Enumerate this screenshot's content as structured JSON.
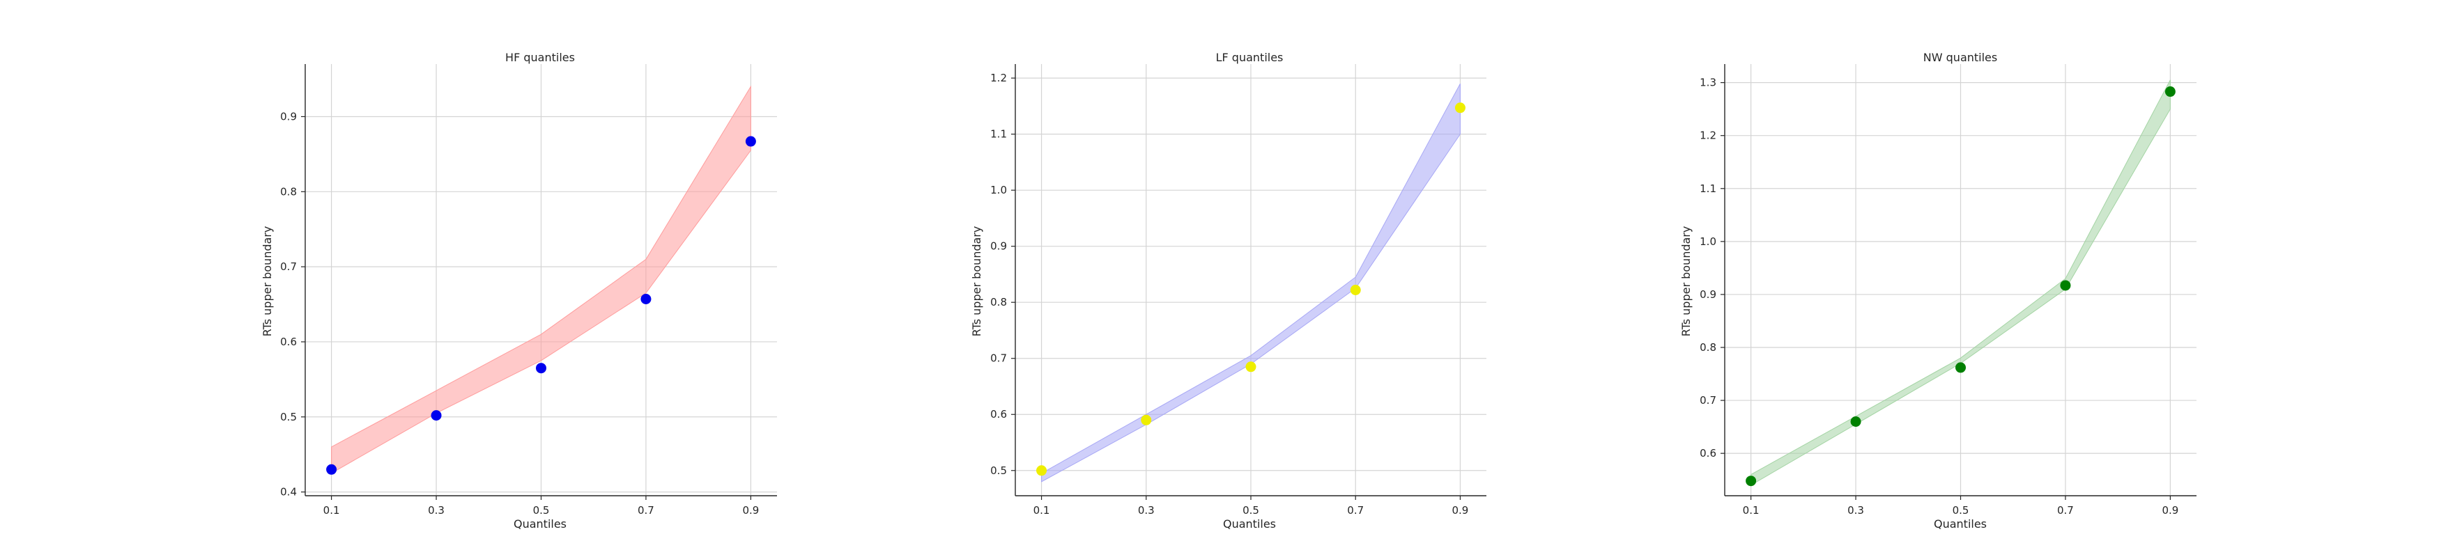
{
  "chart_data": [
    {
      "type": "line",
      "title": "HF quantiles",
      "xlabel": "Quantiles",
      "ylabel": "RTs upper boundary",
      "x": [
        0.1,
        0.3,
        0.5,
        0.7,
        0.9
      ],
      "xticks": [
        "0.1",
        "0.3",
        "0.5",
        "0.7",
        "0.9"
      ],
      "xlim": [
        0.05,
        0.95
      ],
      "ylim": [
        0.395,
        0.97
      ],
      "yticks": [
        0.4,
        0.5,
        0.6,
        0.7,
        0.8,
        0.9
      ],
      "yticklabels": [
        "0.4",
        "0.5",
        "0.6",
        "0.7",
        "0.8",
        "0.9"
      ],
      "grid": true,
      "band": {
        "lower": [
          0.425,
          0.505,
          0.575,
          0.665,
          0.855
        ],
        "upper": [
          0.46,
          0.535,
          0.61,
          0.71,
          0.94
        ],
        "color": "#ff9c9c"
      },
      "points": {
        "values": [
          0.43,
          0.502,
          0.565,
          0.657,
          0.867
        ],
        "color": "#0000ee"
      }
    },
    {
      "type": "line",
      "title": "LF quantiles",
      "xlabel": "Quantiles",
      "ylabel": "RTs upper boundary",
      "x": [
        0.1,
        0.3,
        0.5,
        0.7,
        0.9
      ],
      "xticks": [
        "0.1",
        "0.3",
        "0.5",
        "0.7",
        "0.9"
      ],
      "xlim": [
        0.05,
        0.95
      ],
      "ylim": [
        0.455,
        1.225
      ],
      "yticks": [
        0.5,
        0.6,
        0.7,
        0.8,
        0.9,
        1.0,
        1.1,
        1.2
      ],
      "yticklabels": [
        "0.5",
        "0.6",
        "0.7",
        "0.8",
        "0.9",
        "1.0",
        "1.1",
        "1.2"
      ],
      "grid": true,
      "band": {
        "lower": [
          0.48,
          0.582,
          0.69,
          0.825,
          1.1
        ],
        "upper": [
          0.495,
          0.6,
          0.705,
          0.845,
          1.19
        ],
        "color": "#a8a8f5"
      },
      "points": {
        "values": [
          0.5,
          0.59,
          0.685,
          0.822,
          1.147
        ],
        "color": "#eeee00"
      }
    },
    {
      "type": "line",
      "title": "NW quantiles",
      "xlabel": "Quantiles",
      "ylabel": "RTs upper boundary",
      "x": [
        0.1,
        0.3,
        0.5,
        0.7,
        0.9
      ],
      "xticks": [
        "0.1",
        "0.3",
        "0.5",
        "0.7",
        "0.9"
      ],
      "xlim": [
        0.05,
        0.95
      ],
      "ylim": [
        0.52,
        1.335
      ],
      "yticks": [
        0.6,
        0.7,
        0.8,
        0.9,
        1.0,
        1.1,
        1.2,
        1.3
      ],
      "yticklabels": [
        "0.6",
        "0.7",
        "0.8",
        "0.9",
        "1.0",
        "1.1",
        "1.2",
        "1.3"
      ],
      "grid": true,
      "band": {
        "lower": [
          0.54,
          0.655,
          0.77,
          0.91,
          1.25
        ],
        "upper": [
          0.56,
          0.67,
          0.78,
          0.93,
          1.305
        ],
        "color": "#a4d4a4"
      },
      "points": {
        "values": [
          0.548,
          0.66,
          0.762,
          0.917,
          1.283
        ],
        "color": "#008000"
      }
    }
  ]
}
